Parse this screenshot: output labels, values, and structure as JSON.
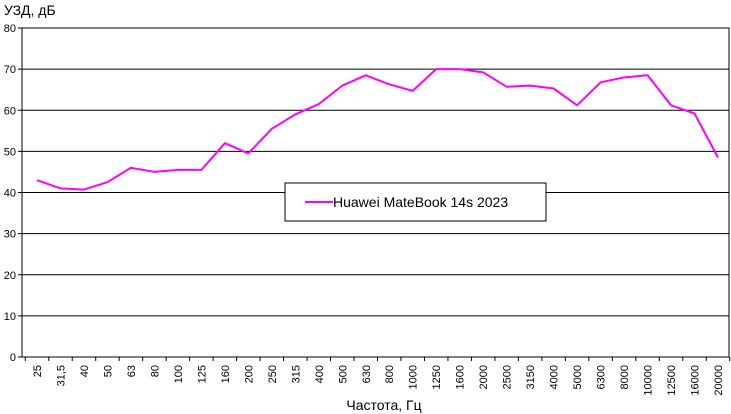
{
  "chart_data": {
    "type": "line",
    "ylabel": "УЗД, дБ",
    "xlabel": "Частота, Гц",
    "ylim": [
      0,
      80
    ],
    "yticks": [
      0,
      10,
      20,
      30,
      40,
      50,
      60,
      70,
      80
    ],
    "grid": "horizontal",
    "legend_position": "center",
    "categories": [
      "25",
      "31,5",
      "40",
      "50",
      "63",
      "80",
      "100",
      "125",
      "160",
      "200",
      "250",
      "315",
      "400",
      "500",
      "630",
      "800",
      "1000",
      "1250",
      "1600",
      "2000",
      "2500",
      "3150",
      "4000",
      "5000",
      "6300",
      "8000",
      "10000",
      "12500",
      "16000",
      "20000"
    ],
    "series": [
      {
        "name": "Huawei MateBook 14s 2023",
        "color": "#ff00ff",
        "values": [
          43.0,
          41.0,
          40.7,
          42.5,
          46.0,
          45.0,
          45.5,
          45.5,
          52.0,
          49.5,
          55.5,
          59.0,
          61.5,
          66.0,
          68.5,
          66.3,
          64.7,
          70.0,
          70.0,
          69.2,
          65.7,
          66.0,
          65.3,
          61.2,
          66.8,
          68.0,
          68.5,
          61.2,
          59.2,
          48.5
        ]
      }
    ]
  }
}
